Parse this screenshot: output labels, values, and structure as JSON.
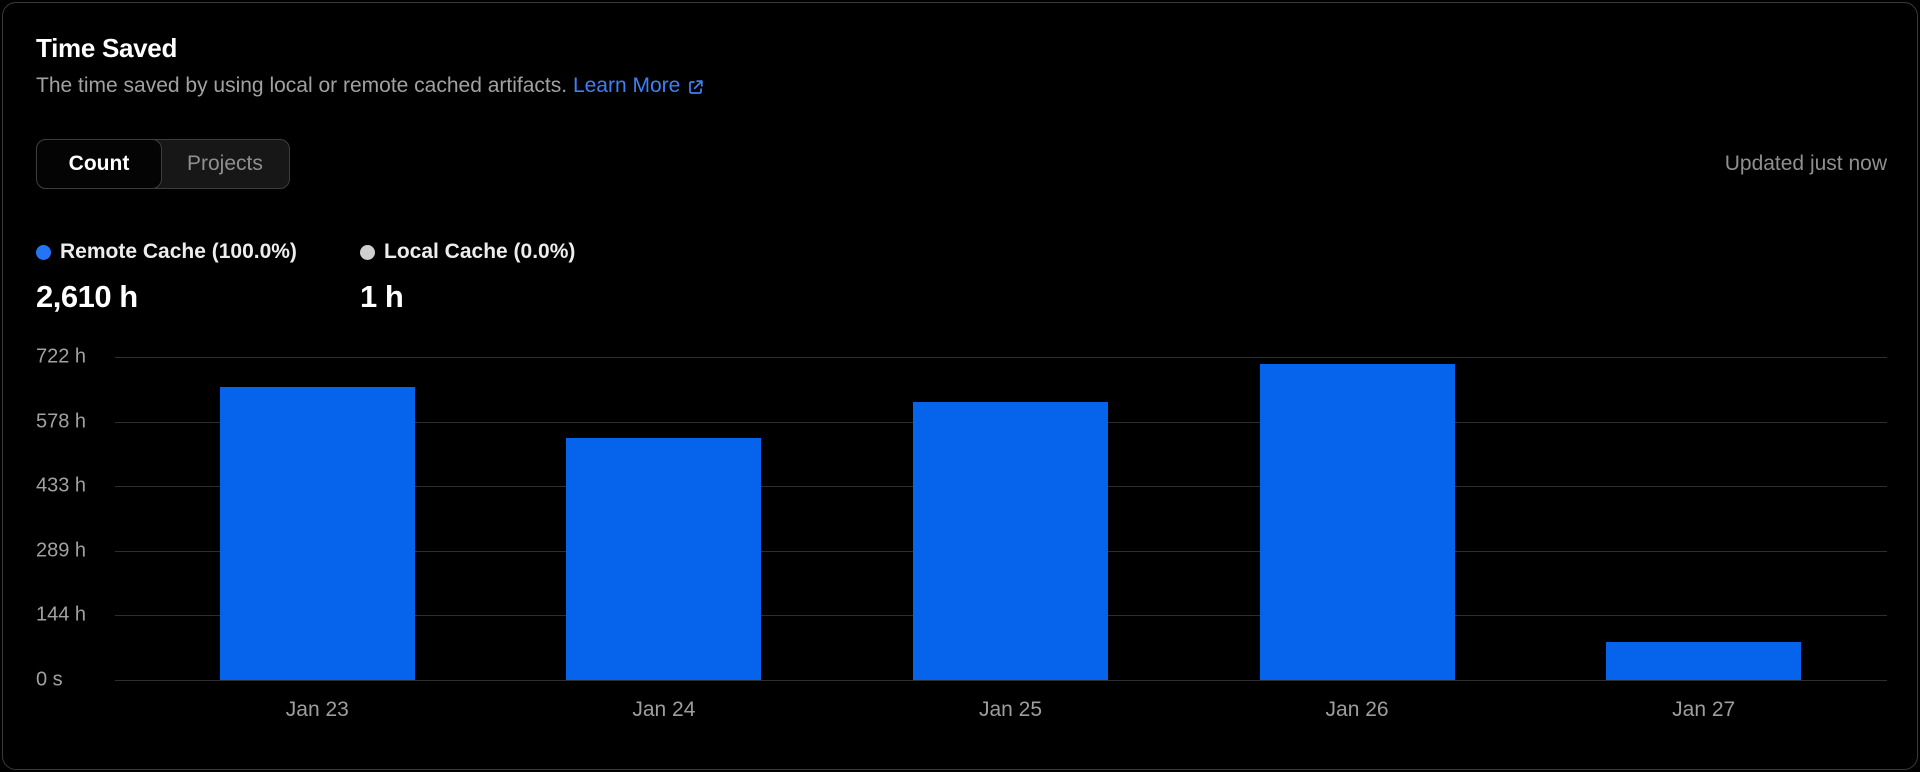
{
  "card": {
    "title": "Time Saved",
    "subtitle": "The time saved by using local or remote cached artifacts.",
    "link_label": "Learn More",
    "updated": "Updated just now"
  },
  "tabs": {
    "count": "Count",
    "projects": "Projects"
  },
  "legend": {
    "items": [
      {
        "label": "Remote Cache (100.0%)",
        "value": "2,610 h",
        "dot_color": "#2474f5"
      },
      {
        "label": "Local Cache (0.0%)",
        "value": "1 h",
        "dot_color": "#cfcfcf"
      }
    ]
  },
  "chart_data": {
    "type": "bar",
    "categories": [
      "Jan 23",
      "Jan 24",
      "Jan 25",
      "Jan 26",
      "Jan 27"
    ],
    "values": [
      655,
      542,
      622,
      706,
      85
    ],
    "unit": "hours",
    "series_name": "Remote Cache time saved",
    "ylim": [
      0,
      722
    ],
    "ymax": 722,
    "ytick_labels": [
      "722 h",
      "578 h",
      "433 h",
      "289 h",
      "144 h",
      "0 s"
    ],
    "grid": "horizontal",
    "bar_color": "#0564eb"
  },
  "colors": {
    "link": "#3b80f6",
    "grid": "#2e2e2e",
    "card_border": "#3a3a3a",
    "background": "#000000"
  }
}
